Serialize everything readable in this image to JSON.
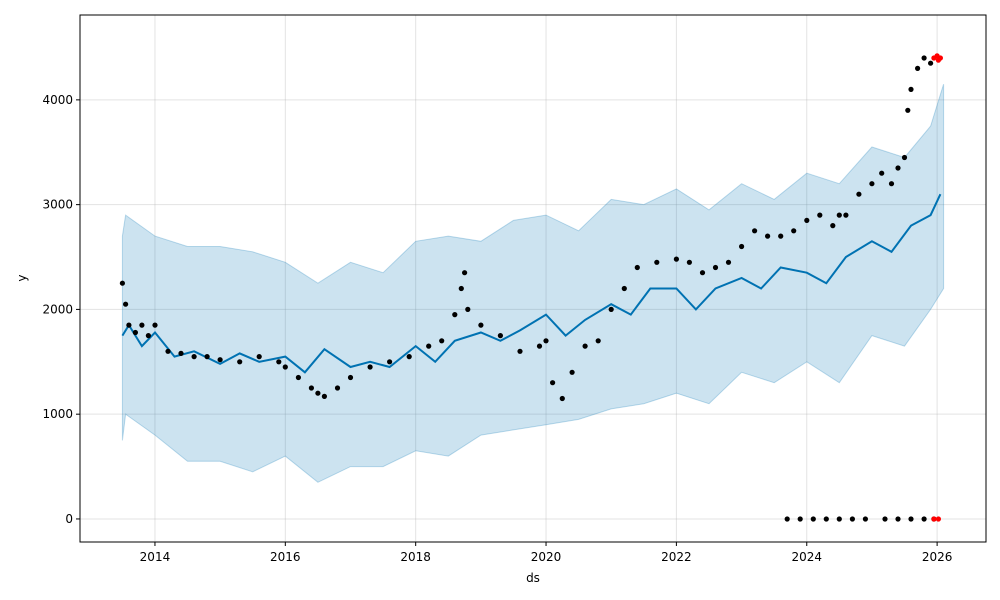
{
  "chart_data": {
    "type": "scatter",
    "title": "",
    "xlabel": "ds",
    "ylabel": "y",
    "xlim": [
      2012.85,
      2026.75
    ],
    "ylim": [
      -220,
      4810
    ],
    "grid": true,
    "x_ticks": [
      {
        "value": 2014,
        "label": "2014"
      },
      {
        "value": 2016,
        "label": "2016"
      },
      {
        "value": 2018,
        "label": "2018"
      },
      {
        "value": 2020,
        "label": "2020"
      },
      {
        "value": 2022,
        "label": "2022"
      },
      {
        "value": 2024,
        "label": "2024"
      },
      {
        "value": 2026,
        "label": "2026"
      }
    ],
    "y_ticks": [
      {
        "value": 0,
        "label": "0"
      },
      {
        "value": 1000,
        "label": "1000"
      },
      {
        "value": 2000,
        "label": "2000"
      },
      {
        "value": 3000,
        "label": "3000"
      },
      {
        "value": 4000,
        "label": "4000"
      }
    ],
    "colors": {
      "forecast": "#0072B2",
      "interval_fill": "#0072B2",
      "observed": "#000000",
      "highlight": "#ff0000"
    },
    "series": [
      {
        "kind": "uncertainty_band",
        "x": [
          2013.5,
          2013.55,
          2014.0,
          2014.5,
          2015.0,
          2015.5,
          2016.0,
          2016.5,
          2017.0,
          2017.5,
          2018.0,
          2018.5,
          2019.0,
          2019.5,
          2020.0,
          2020.5,
          2021.0,
          2021.5,
          2022.0,
          2022.5,
          2023.0,
          2023.5,
          2024.0,
          2024.5,
          2025.0,
          2025.5,
          2025.9,
          2026.1
        ],
        "upper": [
          2700,
          2900,
          2700,
          2600,
          2600,
          2550,
          2450,
          2250,
          2450,
          2350,
          2650,
          2700,
          2650,
          2850,
          2900,
          2750,
          3050,
          3000,
          3150,
          2950,
          3200,
          3050,
          3300,
          3200,
          3550,
          3450,
          3750,
          4150
        ],
        "lower": [
          750,
          1000,
          800,
          550,
          550,
          450,
          600,
          350,
          500,
          500,
          650,
          600,
          800,
          850,
          900,
          950,
          1050,
          1100,
          1200,
          1100,
          1400,
          1300,
          1500,
          1300,
          1750,
          1650,
          2000,
          2200
        ]
      },
      {
        "kind": "forecast_line",
        "x": [
          2013.5,
          2013.6,
          2013.8,
          2014.0,
          2014.3,
          2014.6,
          2015.0,
          2015.3,
          2015.6,
          2016.0,
          2016.3,
          2016.6,
          2017.0,
          2017.3,
          2017.6,
          2018.0,
          2018.3,
          2018.6,
          2019.0,
          2019.3,
          2019.6,
          2020.0,
          2020.3,
          2020.6,
          2021.0,
          2021.3,
          2021.6,
          2022.0,
          2022.3,
          2022.6,
          2023.0,
          2023.3,
          2023.6,
          2024.0,
          2024.3,
          2024.6,
          2025.0,
          2025.3,
          2025.6,
          2025.9,
          2026.05
        ],
        "y": [
          1750,
          1850,
          1650,
          1780,
          1550,
          1600,
          1480,
          1580,
          1500,
          1550,
          1400,
          1620,
          1450,
          1500,
          1450,
          1650,
          1500,
          1700,
          1780,
          1700,
          1800,
          1950,
          1750,
          1900,
          2050,
          1950,
          2200,
          2200,
          2000,
          2200,
          2300,
          2200,
          2400,
          2350,
          2250,
          2500,
          2650,
          2550,
          2800,
          2900,
          3100
        ]
      },
      {
        "kind": "observed_points",
        "x": [
          2013.5,
          2013.55,
          2013.6,
          2013.7,
          2013.8,
          2013.9,
          2014.0,
          2014.2,
          2014.4,
          2014.6,
          2014.8,
          2015.0,
          2015.3,
          2015.6,
          2015.9,
          2016.0,
          2016.2,
          2016.4,
          2016.5,
          2016.6,
          2016.8,
          2017.0,
          2017.3,
          2017.6,
          2017.9,
          2018.2,
          2018.4,
          2018.6,
          2018.7,
          2018.75,
          2018.8,
          2019.0,
          2019.3,
          2019.6,
          2019.9,
          2020.0,
          2020.1,
          2020.25,
          2020.4,
          2020.6,
          2020.8,
          2021.0,
          2021.2,
          2021.4,
          2021.7,
          2022.0,
          2022.2,
          2022.4,
          2022.6,
          2022.8,
          2023.0,
          2023.2,
          2023.4,
          2023.6,
          2023.8,
          2024.0,
          2024.2,
          2024.4,
          2024.5,
          2024.6,
          2024.8,
          2025.0,
          2025.15,
          2025.3,
          2025.4,
          2025.5,
          2025.55,
          2025.6,
          2025.7,
          2025.8,
          2025.9
        ],
        "y": [
          2250,
          2050,
          1850,
          1780,
          1850,
          1750,
          1850,
          1600,
          1580,
          1550,
          1550,
          1520,
          1500,
          1550,
          1500,
          1450,
          1350,
          1250,
          1200,
          1170,
          1250,
          1350,
          1450,
          1500,
          1550,
          1650,
          1700,
          1950,
          2200,
          2350,
          2000,
          1850,
          1750,
          1600,
          1650,
          1700,
          1300,
          1150,
          1400,
          1650,
          1700,
          2000,
          2200,
          2400,
          2450,
          2480,
          2450,
          2350,
          2400,
          2450,
          2600,
          2750,
          2700,
          2700,
          2750,
          2850,
          2900,
          2800,
          2900,
          2900,
          3100,
          3200,
          3300,
          3200,
          3350,
          3450,
          3900,
          4100,
          4300,
          4400,
          4350
        ]
      },
      {
        "kind": "observed_points_zero",
        "x": [
          2023.7,
          2023.9,
          2024.1,
          2024.3,
          2024.5,
          2024.7,
          2024.9,
          2025.2,
          2025.4,
          2025.6,
          2025.8,
          2025.95
        ],
        "y": [
          0,
          0,
          0,
          0,
          0,
          0,
          0,
          0,
          0,
          0,
          0,
          0
        ]
      },
      {
        "kind": "highlight_points",
        "x": [
          2025.95,
          2026.0,
          2026.02,
          2026.05,
          2025.95,
          2026.02
        ],
        "y": [
          4400,
          4420,
          4380,
          4400,
          0,
          0
        ]
      }
    ]
  }
}
